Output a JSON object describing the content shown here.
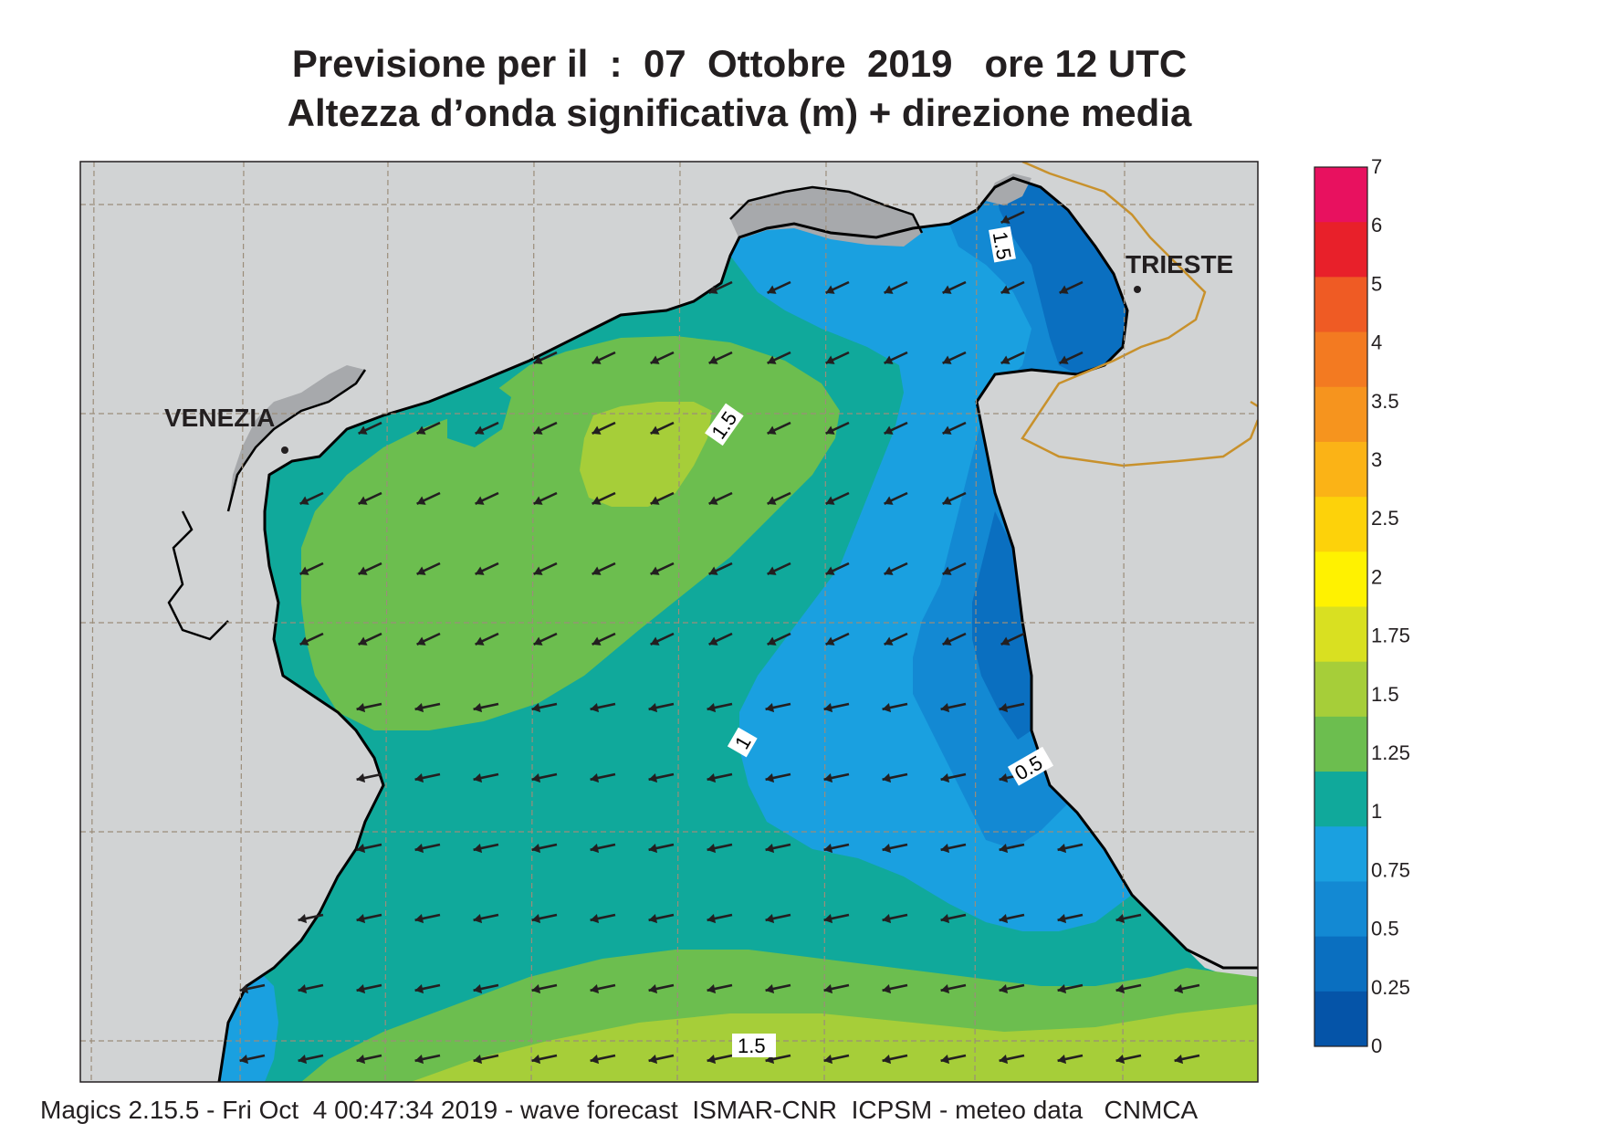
{
  "title": {
    "line1": "Previsione per il  :  07  Ottobre  2019   ore 12 UTC",
    "line2": "Altezza d’onda significativa (m) + direzione media"
  },
  "places": {
    "venezia": "VENEZIA",
    "trieste": "TRIESTE"
  },
  "contour_labels": {
    "c1": "1.5",
    "c2": "1.5",
    "c3": "1",
    "c4": "0.5",
    "c5": "1.5"
  },
  "colorbar": {
    "labels": [
      "7",
      "6",
      "5",
      "4",
      "3.5",
      "3",
      "2.5",
      "2",
      "1.75",
      "1.5",
      "1.25",
      "1",
      "0.75",
      "0.5",
      "0.25",
      "0"
    ],
    "colors": [
      "#e8115f",
      "#e8202a",
      "#ef5b24",
      "#f37a21",
      "#f6941e",
      "#fbb316",
      "#fdd20a",
      "#fff200",
      "#d9e021",
      "#a6ce39",
      "#6cbe4f",
      "#10a99b",
      "#1aa0e0",
      "#1389d3",
      "#0a6fc0",
      "#0554a8"
    ]
  },
  "legend_units": "m",
  "footer": "Magics 2.15.5 - Fri Oct  4 00:47:34 2019 - wave forecast  ISMAR-CNR  ICPSM - meteo data   CNMCA",
  "icons": {
    "arrow": "wave-direction-arrow",
    "city_marker": "city-marker-icon"
  }
}
